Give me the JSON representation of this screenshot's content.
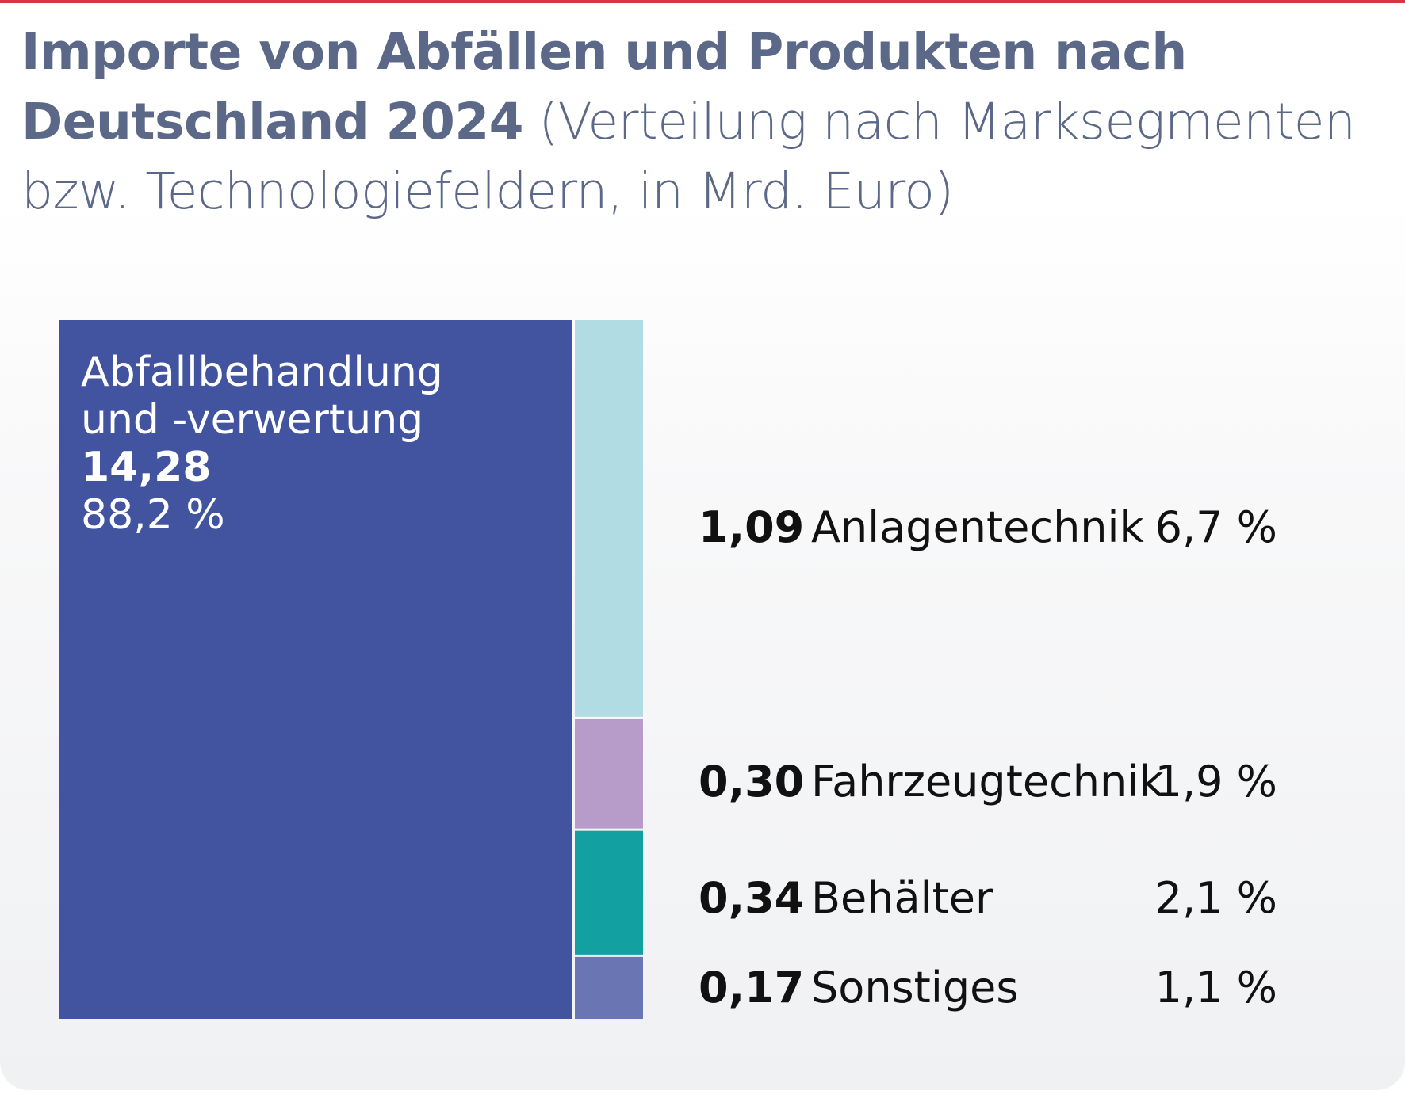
{
  "title": {
    "bold": "Importe von Abfällen und Produkten nach Deutschland 2024",
    "regular": "(Verteilung nach Marksegmenten bzw. Technologiefeldern, in Mrd. Euro)"
  },
  "chart_data": {
    "type": "treemap",
    "title": "Importe von Abfällen und Produkten nach Deutschland 2024 (Verteilung nach Marksegmenten bzw. Technologiefeldern, in Mrd. Euro)",
    "unit": "Mrd. Euro",
    "segments": [
      {
        "name": "Abfallbehandlung und -verwertung",
        "line1": "Abfallbehandlung",
        "line2": "und -verwertung",
        "value": 14.28,
        "value_label": "14,28",
        "percent": 88.2,
        "percent_label": "88,2 %",
        "color": "#4254a0"
      },
      {
        "name": "Anlagentechnik",
        "value": 1.09,
        "value_label": "1,09",
        "percent": 6.7,
        "percent_label": "6,7 %",
        "color": "#b1dce3"
      },
      {
        "name": "Fahrzeugtechnik",
        "value": 0.3,
        "value_label": "0,30",
        "percent": 1.9,
        "percent_label": "1,9 %",
        "color": "#b79cca"
      },
      {
        "name": "Behälter",
        "value": 0.34,
        "value_label": "0,34",
        "percent": 2.1,
        "percent_label": "2,1 %",
        "color": "#12a0a1"
      },
      {
        "name": "Sonstiges",
        "value": 0.17,
        "value_label": "0,17",
        "percent": 1.1,
        "percent_label": "1,1 %",
        "color": "#6a76b4"
      }
    ]
  }
}
